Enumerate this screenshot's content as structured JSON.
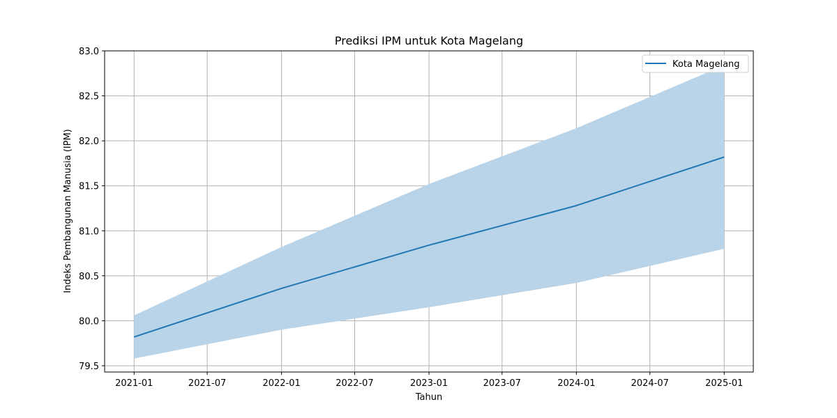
{
  "chart_data": {
    "type": "line",
    "title": "Prediksi IPM untuk Kota Magelang",
    "xlabel": "Tahun",
    "ylabel": "Indeks Pembangunan Manusia (IPM)",
    "x": [
      "2021-01-01",
      "2022-01-01",
      "2023-01-01",
      "2024-01-01",
      "2025-01-01"
    ],
    "series": [
      {
        "name": "Kota Magelang",
        "values": [
          79.82,
          80.36,
          80.84,
          81.28,
          81.82
        ],
        "lower": [
          79.58,
          79.9,
          80.15,
          80.42,
          80.8
        ],
        "upper": [
          80.06,
          80.82,
          81.52,
          82.14,
          82.84
        ],
        "color": "#1f77b4",
        "band_color": "#b9d4e8"
      }
    ],
    "x_ticks": [
      "2021-01",
      "2021-07",
      "2022-01",
      "2022-07",
      "2023-01",
      "2023-07",
      "2024-01",
      "2024-07",
      "2025-01"
    ],
    "x_tick_dates": [
      "2021-01-01",
      "2021-07-01",
      "2022-01-01",
      "2022-07-01",
      "2023-01-01",
      "2023-07-01",
      "2024-01-01",
      "2024-07-01",
      "2025-01-01"
    ],
    "y_ticks": [
      "79.5",
      "80.0",
      "80.5",
      "81.0",
      "81.5",
      "82.0",
      "82.5",
      "83.0"
    ],
    "xlim": [
      "2020-10-20",
      "2025-03-14"
    ],
    "ylim": [
      79.43,
      83.0
    ],
    "grid": true,
    "legend_position": "top-right"
  }
}
